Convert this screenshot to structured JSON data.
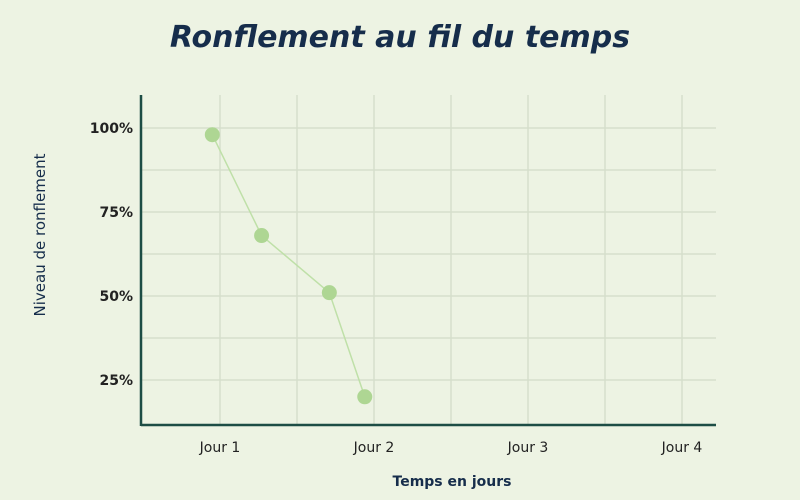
{
  "chart_data": {
    "type": "line",
    "title": "Ronflement au fil du temps",
    "xlabel": "Temps en jours",
    "ylabel": "Niveau de ronflement",
    "x_categories": [
      "Jour 1",
      "Jour 2",
      "Jour 3",
      "Jour 4"
    ],
    "x_tick_values": [
      1,
      2,
      3,
      4
    ],
    "y_ticks": [
      {
        "value": 100,
        "label": "100%"
      },
      {
        "value": 75,
        "label": "75%"
      },
      {
        "value": 50,
        "label": "50%"
      },
      {
        "value": 25,
        "label": "25%"
      }
    ],
    "series": [
      {
        "x": [
          0.95,
          1.27,
          1.71,
          1.94
        ],
        "y": [
          98,
          68,
          51,
          20
        ]
      }
    ],
    "grid": true,
    "colors": {
      "point": "#aed693",
      "line": "#bfe0a8",
      "axis": "#1d4d45",
      "grid": "#d6dfcc",
      "title": "#162d4b"
    }
  }
}
